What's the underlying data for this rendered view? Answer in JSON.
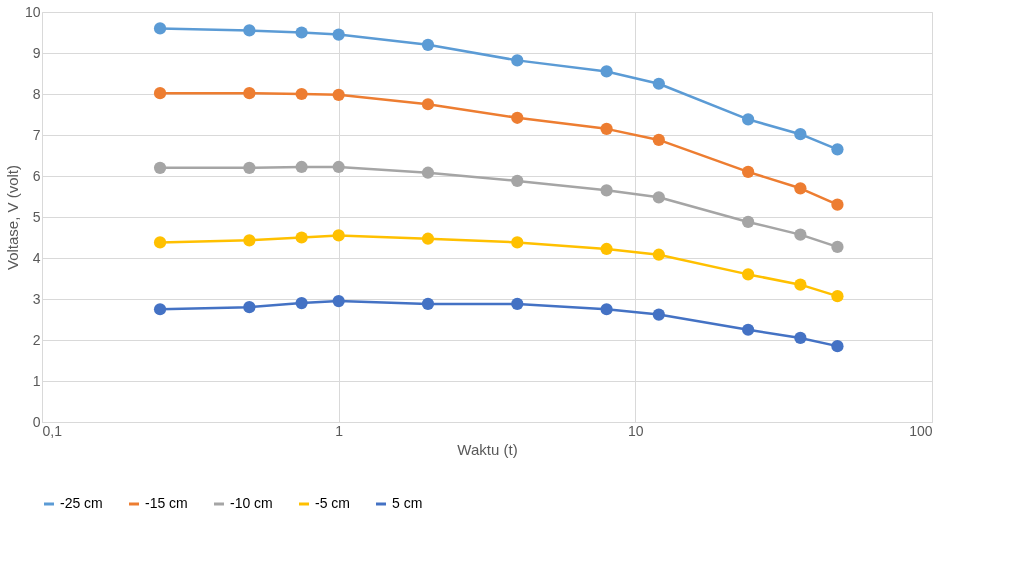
{
  "chart_data": {
    "type": "line",
    "xlabel": "Waktu (t)",
    "ylabel": "Voltase, V (volt)",
    "log": "x",
    "x": [
      0.25,
      0.5,
      0.75,
      1,
      2,
      4,
      8,
      12,
      24,
      36,
      48
    ],
    "xlim": [
      0.1,
      100
    ],
    "xticks": [
      {
        "value": 0.1,
        "label": "0,1"
      },
      1,
      10,
      100
    ],
    "ylim": [
      0,
      10
    ],
    "yticks": [
      0,
      1,
      2,
      3,
      4,
      5,
      6,
      7,
      8,
      9,
      10
    ],
    "grid": true,
    "legend": "bottom",
    "marker": "circle",
    "line_style": "solid",
    "series": [
      {
        "name": "-25 cm",
        "color": "#5b9bd5",
        "values": [
          9.6,
          9.55,
          9.5,
          9.45,
          9.2,
          8.82,
          8.55,
          8.25,
          7.38,
          7.02,
          6.65
        ]
      },
      {
        "name": "-15 cm",
        "color": "#ed7d31",
        "values": [
          8.02,
          8.02,
          8.0,
          7.98,
          7.75,
          7.42,
          7.15,
          6.88,
          6.1,
          5.7,
          5.3
        ]
      },
      {
        "name": "-10 cm",
        "color": "#a5a5a5",
        "values": [
          6.2,
          6.2,
          6.22,
          6.22,
          6.08,
          5.88,
          5.65,
          5.48,
          4.88,
          4.57,
          4.27
        ]
      },
      {
        "name": "-5 cm",
        "color": "#ffc000",
        "values": [
          4.38,
          4.43,
          4.5,
          4.55,
          4.47,
          4.38,
          4.22,
          4.08,
          3.6,
          3.35,
          3.07
        ]
      },
      {
        "name": "5 cm",
        "color": "#4472c4",
        "values": [
          2.75,
          2.8,
          2.9,
          2.95,
          2.88,
          2.88,
          2.75,
          2.62,
          2.25,
          2.05,
          1.85
        ]
      }
    ]
  }
}
